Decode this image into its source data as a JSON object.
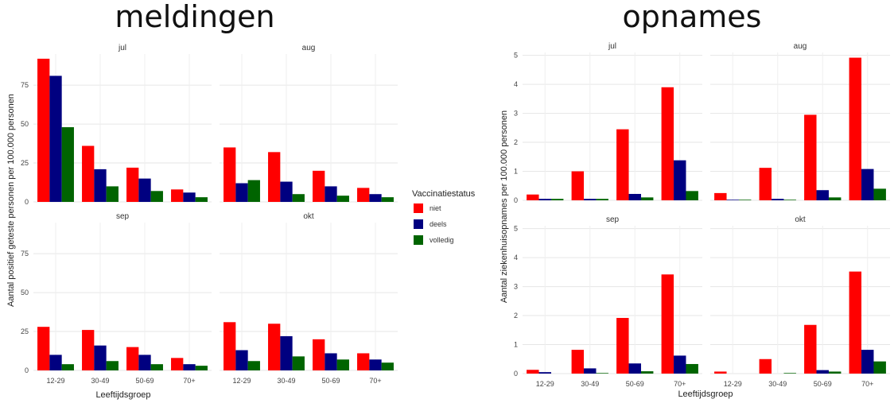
{
  "colors": {
    "niet": "#ff0000",
    "deels": "#000080",
    "volledig": "#006400",
    "grid": "#e6e6e6"
  },
  "legend": {
    "title": "Vaccinatiestatus",
    "items": [
      {
        "key": "niet",
        "label": "niet"
      },
      {
        "key": "deels",
        "label": "deels"
      },
      {
        "key": "volledig",
        "label": "volledig"
      }
    ]
  },
  "chart_data": [
    {
      "type": "bar",
      "title": "meldingen",
      "xlabel": "Leeftijdsgroep",
      "ylabel": "Aantal positief geteste personen per 100.000 personen",
      "categories": [
        "12-29",
        "30-49",
        "50-69",
        "70+"
      ],
      "ylim": [
        0,
        95
      ],
      "yticks": [
        0,
        25,
        50,
        75
      ],
      "legend_position": "right",
      "grid": true,
      "facets": [
        {
          "title": "jul",
          "series": [
            {
              "name": "niet",
              "values": [
                92,
                36,
                22,
                8
              ]
            },
            {
              "name": "deels",
              "values": [
                81,
                21,
                15,
                6
              ]
            },
            {
              "name": "volledig",
              "values": [
                48,
                10,
                7,
                3
              ]
            }
          ]
        },
        {
          "title": "aug",
          "series": [
            {
              "name": "niet",
              "values": [
                35,
                32,
                20,
                9
              ]
            },
            {
              "name": "deels",
              "values": [
                12,
                13,
                10,
                5
              ]
            },
            {
              "name": "volledig",
              "values": [
                14,
                5,
                4,
                3
              ]
            }
          ]
        },
        {
          "title": "sep",
          "series": [
            {
              "name": "niet",
              "values": [
                28,
                26,
                15,
                8
              ]
            },
            {
              "name": "deels",
              "values": [
                10,
                16,
                10,
                4
              ]
            },
            {
              "name": "volledig",
              "values": [
                4,
                6,
                4,
                3
              ]
            }
          ]
        },
        {
          "title": "okt",
          "series": [
            {
              "name": "niet",
              "values": [
                31,
                30,
                20,
                11
              ]
            },
            {
              "name": "deels",
              "values": [
                13,
                22,
                11,
                7
              ]
            },
            {
              "name": "volledig",
              "values": [
                6,
                9,
                7,
                5
              ]
            }
          ]
        }
      ]
    },
    {
      "type": "bar",
      "title": "opnames",
      "xlabel": "Leeftijdsgroep",
      "ylabel": "Aantal ziekenhuisopnames per 100.000 personen",
      "categories": [
        "12-29",
        "30-49",
        "50-69",
        "70+"
      ],
      "ylim": [
        0,
        5.1
      ],
      "yticks": [
        0,
        1,
        2,
        3,
        4,
        5
      ],
      "grid": true,
      "facets": [
        {
          "title": "jul",
          "series": [
            {
              "name": "niet",
              "values": [
                0.2,
                1.0,
                2.45,
                3.9
              ]
            },
            {
              "name": "deels",
              "values": [
                0.05,
                0.05,
                0.22,
                1.38
              ]
            },
            {
              "name": "volledig",
              "values": [
                0.05,
                0.05,
                0.1,
                0.32
              ]
            }
          ]
        },
        {
          "title": "aug",
          "series": [
            {
              "name": "niet",
              "values": [
                0.25,
                1.12,
                2.95,
                4.92
              ]
            },
            {
              "name": "deels",
              "values": [
                0.02,
                0.05,
                0.35,
                1.08
              ]
            },
            {
              "name": "volledig",
              "values": [
                0.02,
                0.02,
                0.1,
                0.4
              ]
            }
          ]
        },
        {
          "title": "sep",
          "series": [
            {
              "name": "niet",
              "values": [
                0.13,
                0.82,
                1.92,
                3.42
              ]
            },
            {
              "name": "deels",
              "values": [
                0.05,
                0.18,
                0.35,
                0.62
              ]
            },
            {
              "name": "volledig",
              "values": [
                0.0,
                0.02,
                0.08,
                0.33
              ]
            }
          ]
        },
        {
          "title": "okt",
          "series": [
            {
              "name": "niet",
              "values": [
                0.07,
                0.5,
                1.68,
                3.52
              ]
            },
            {
              "name": "deels",
              "values": [
                0.0,
                0.0,
                0.12,
                0.82
              ]
            },
            {
              "name": "volledig",
              "values": [
                0.0,
                0.02,
                0.07,
                0.42
              ]
            }
          ]
        }
      ]
    }
  ]
}
